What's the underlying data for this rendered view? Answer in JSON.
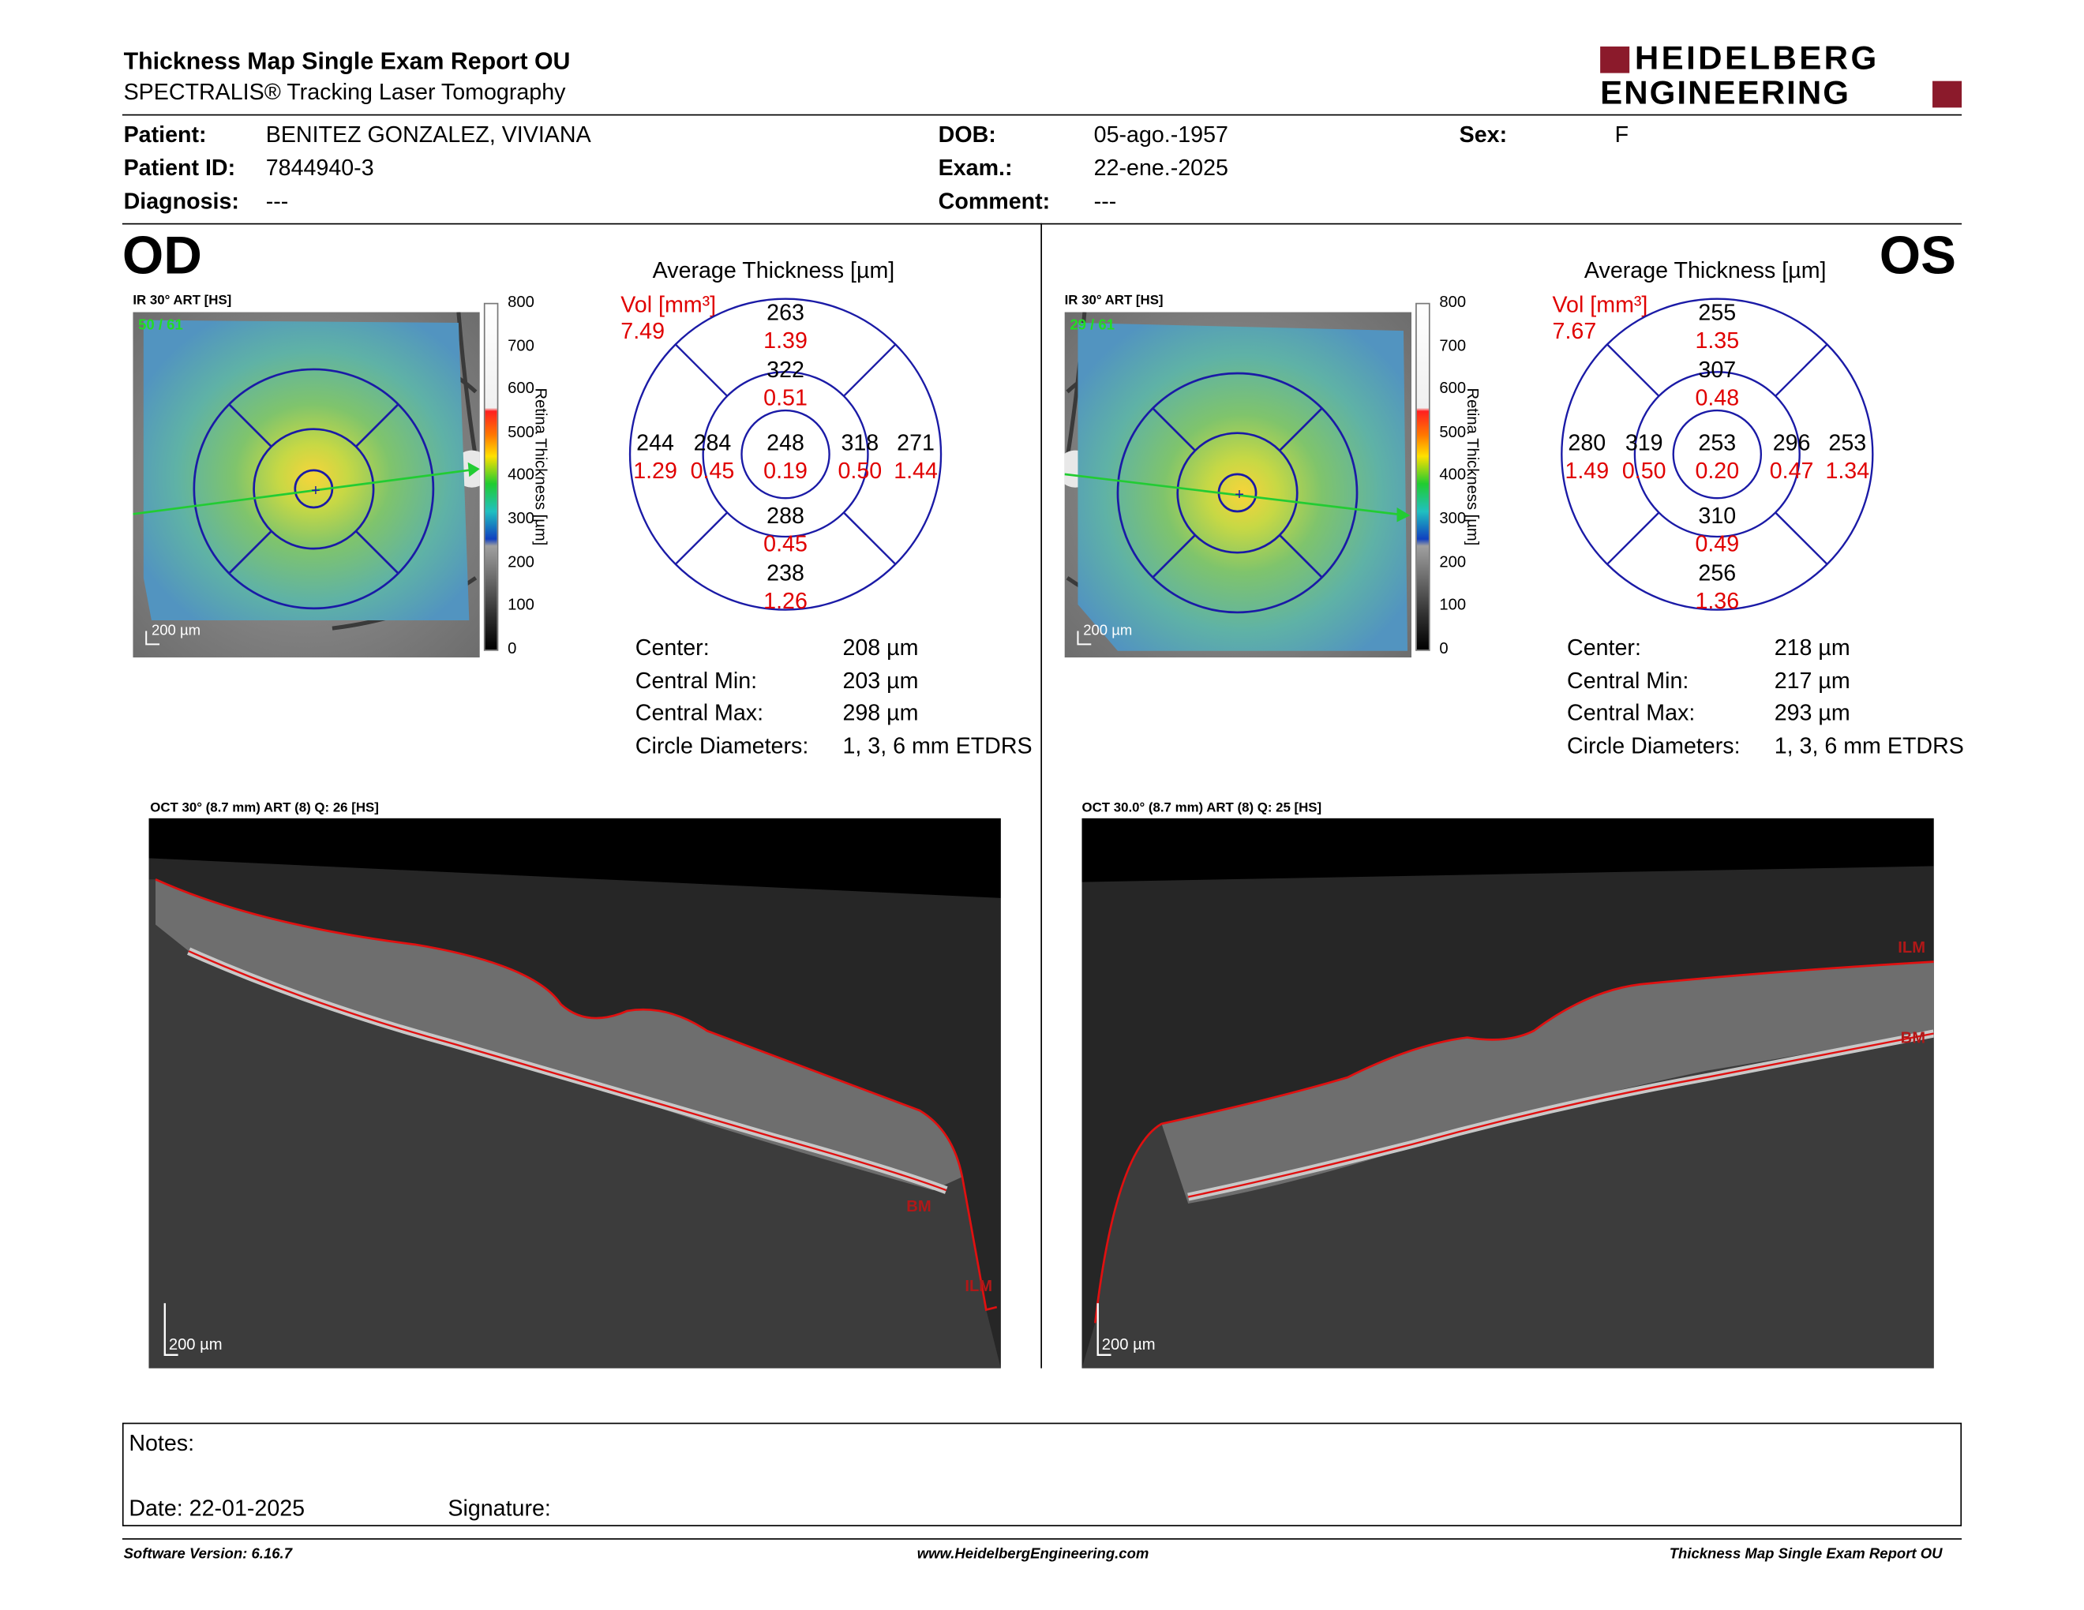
{
  "report": {
    "title": "Thickness Map Single Exam Report OU",
    "subtitle": "SPECTRALIS® Tracking Laser Tomography",
    "logo_line1": "HEIDELBERG",
    "logo_line2": "ENGINEERING"
  },
  "patient": {
    "patient_label": "Patient:",
    "patient_value": "BENITEZ GONZALEZ, VIVIANA",
    "id_label": "Patient ID:",
    "id_value": "7844940-3",
    "diagnosis_label": "Diagnosis:",
    "diagnosis_value": "---",
    "dob_label": "DOB:",
    "dob_value": "05-ago.-1957",
    "exam_label": "Exam.:",
    "exam_value": "22-ene.-2025",
    "comment_label": "Comment:",
    "comment_value": "---",
    "sex_label": "Sex:",
    "sex_value": "F"
  },
  "colorbar": {
    "title": "Retina  Thickness [µm]",
    "ticks": [
      "800",
      "700",
      "600",
      "500",
      "400",
      "300",
      "200",
      "100",
      "0"
    ]
  },
  "od": {
    "eye": "OD",
    "ir_label": "IR 30° ART [HS]",
    "ir_frames": "50 / 61",
    "scale_label": "200 µm",
    "avg_title": "Average Thickness [µm]",
    "vol_label": "Vol [mm³]",
    "vol_total": "7.49",
    "sectors": {
      "center_t": "248",
      "center_v": "0.19",
      "inner_sup_t": "322",
      "inner_sup_v": "0.51",
      "inner_inf_t": "288",
      "inner_inf_v": "0.45",
      "inner_left_t": "284",
      "inner_left_v": "0.45",
      "inner_right_t": "318",
      "inner_right_v": "0.50",
      "outer_sup_t": "263",
      "outer_sup_v": "1.39",
      "outer_inf_t": "238",
      "outer_inf_v": "1.26",
      "outer_left_t": "244",
      "outer_left_v": "1.29",
      "outer_right_t": "271",
      "outer_right_v": "1.44"
    },
    "stats": {
      "center_label": "Center:",
      "center_value": "208 µm",
      "min_label": "Central Min:",
      "min_value": "203 µm",
      "max_label": "Central Max:",
      "max_value": "298 µm",
      "diam_label": "Circle Diameters:",
      "diam_value": "1, 3, 6 mm ETDRS"
    },
    "oct_label": "OCT 30° (8.7 mm) ART (8) Q: 26 [HS]",
    "oct_scale": "200 µm",
    "bm_label": "BM",
    "ilm_label": "ILM"
  },
  "os": {
    "eye": "OS",
    "ir_label": "IR 30° ART [HS]",
    "ir_frames": "29 / 61",
    "scale_label": "200 µm",
    "avg_title": "Average Thickness [µm]",
    "vol_label": "Vol [mm³]",
    "vol_total": "7.67",
    "sectors": {
      "center_t": "253",
      "center_v": "0.20",
      "inner_sup_t": "307",
      "inner_sup_v": "0.48",
      "inner_inf_t": "310",
      "inner_inf_v": "0.49",
      "inner_left_t": "319",
      "inner_left_v": "0.50",
      "inner_right_t": "296",
      "inner_right_v": "0.47",
      "outer_sup_t": "255",
      "outer_sup_v": "1.35",
      "outer_inf_t": "256",
      "outer_inf_v": "1.36",
      "outer_left_t": "280",
      "outer_left_v": "1.49",
      "outer_right_t": "253",
      "outer_right_v": "1.34"
    },
    "stats": {
      "center_label": "Center:",
      "center_value": "218 µm",
      "min_label": "Central Min:",
      "min_value": "217 µm",
      "max_label": "Central Max:",
      "max_value": "293 µm",
      "diam_label": "Circle Diameters:",
      "diam_value": "1, 3, 6 mm ETDRS"
    },
    "oct_label": "OCT 30.0° (8.7 mm) ART (8) Q: 25 [HS]",
    "oct_scale": "200 µm",
    "bm_label": "BM",
    "ilm_label": "ILM"
  },
  "notes": {
    "notes_label": "Notes:",
    "date_label": "Date: 22-01-2025",
    "signature_label": "Signature:"
  },
  "footer": {
    "software": "Software Version: 6.16.7",
    "website": "www.HeidelbergEngineering.com",
    "report_name": "Thickness Map Single Exam Report OU"
  },
  "colors": {
    "heidelberg_red": "#8b1a2b",
    "volume_red": "#e00000",
    "etdrs_blue": "#1a1aa6",
    "segmentation_red": "#e01010",
    "scan_line_green": "#22cc33"
  }
}
